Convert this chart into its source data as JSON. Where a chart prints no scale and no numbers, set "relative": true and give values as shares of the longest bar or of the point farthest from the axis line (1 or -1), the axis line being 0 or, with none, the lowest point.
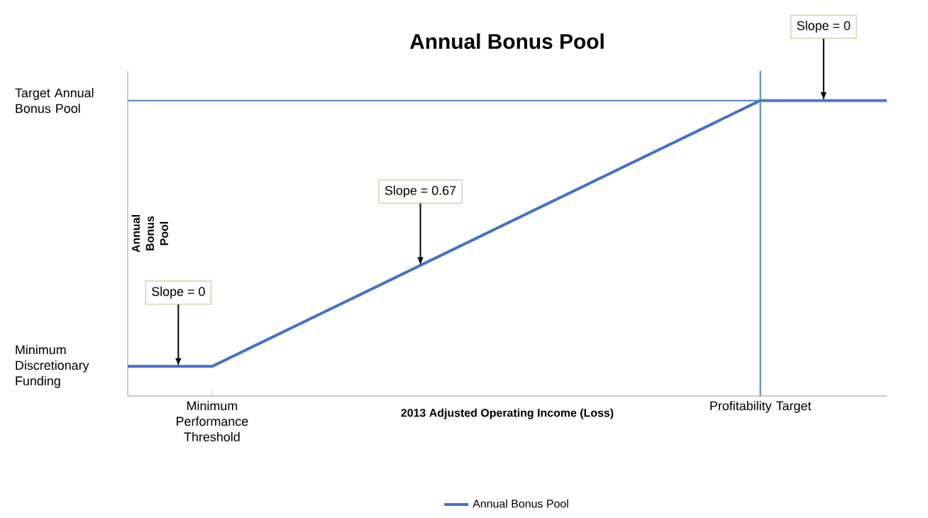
{
  "chart_data": {
    "type": "line",
    "title": "Annual Bonus Pool",
    "xlabel": "2013 Adjusted Operating Income (Loss)",
    "ylabel": "Annual Bonus Pool",
    "relative": true,
    "categories": [
      null,
      null,
      "Minimum Performance Threshold",
      null,
      null,
      null,
      null,
      null,
      null,
      null,
      null,
      null,
      null,
      null,
      null,
      "Profitability Target",
      null,
      null,
      null
    ],
    "series": [
      {
        "name": "Annual Bonus Pool",
        "color": "#4472c4",
        "values": [
          0.1,
          null,
          0.1,
          null,
          null,
          null,
          null,
          null,
          null,
          null,
          null,
          null,
          null,
          null,
          null,
          1,
          null,
          null,
          1
        ]
      }
    ],
    "ref_lines": [
      {
        "axis": "y",
        "value": 1,
        "color": "#4f81bd"
      },
      {
        "axis": "x",
        "value": "Profitability Target",
        "color": "#4f81bd"
      }
    ],
    "annotations": [
      "Target Annual Bonus Pool",
      "Minimum Discretionary Funding",
      "Slope = 0",
      "Slope = 0.67",
      "Slope = 0"
    ],
    "legend": "bottom",
    "marker": "none",
    "line_style": "solid",
    "grid": false
  }
}
